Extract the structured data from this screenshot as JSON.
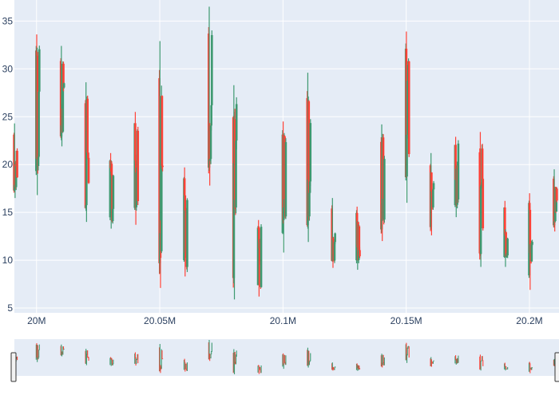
{
  "colors": {
    "increasing": "#3d9970",
    "decreasing": "#ff4136",
    "plot_bg": "#e5ecf6",
    "grid": "#ffffff",
    "tick_text": "#2a3f5f"
  },
  "chart_data": {
    "type": "candlestick",
    "title": "",
    "xlabel": "",
    "ylabel": "",
    "x_tick_labels": [
      "20M",
      "20.05M",
      "20.1M",
      "20.15M",
      "20.2M"
    ],
    "x_tick_values": [
      20000000,
      20050000,
      20100000,
      20150000,
      20200000
    ],
    "y_tick_labels": [
      "5",
      "10",
      "15",
      "20",
      "25",
      "30",
      "35"
    ],
    "y_tick_values": [
      5,
      10,
      15,
      20,
      25,
      30,
      35
    ],
    "xlim": [
      19991000,
      20212000
    ],
    "ylim": [
      4.5,
      37.2
    ],
    "grid": true,
    "rangeslider": true,
    "clusters": [
      {
        "x": 19991500,
        "high": 24.3,
        "low": 16.5,
        "close_up": false
      },
      {
        "x": 20000500,
        "high": 33.6,
        "low": 16.8,
        "close_up": true
      },
      {
        "x": 20010500,
        "high": 32.4,
        "low": 21.9,
        "close_up": false
      },
      {
        "x": 20020500,
        "high": 28.6,
        "low": 14.0,
        "close_up": false
      },
      {
        "x": 20030500,
        "high": 21.2,
        "low": 13.3,
        "close_up": true
      },
      {
        "x": 20040500,
        "high": 25.5,
        "low": 13.7,
        "close_up": true
      },
      {
        "x": 20050500,
        "high": 32.9,
        "low": 7.1,
        "close_up": false
      },
      {
        "x": 20060500,
        "high": 19.7,
        "low": 8.3,
        "close_up": true
      },
      {
        "x": 20070500,
        "high": 36.5,
        "low": 17.8,
        "close_up": false
      },
      {
        "x": 20080500,
        "high": 28.3,
        "low": 5.9,
        "close_up": false
      },
      {
        "x": 20090500,
        "high": 14.2,
        "low": 6.2,
        "close_up": true
      },
      {
        "x": 20100500,
        "high": 24.5,
        "low": 10.8,
        "close_up": true
      },
      {
        "x": 20110500,
        "high": 29.6,
        "low": 11.9,
        "close_up": false
      },
      {
        "x": 20120500,
        "high": 16.5,
        "low": 9.2,
        "close_up": false
      },
      {
        "x": 20130500,
        "high": 15.6,
        "low": 9.0,
        "close_up": true
      },
      {
        "x": 20140500,
        "high": 24.2,
        "low": 12.0,
        "close_up": false
      },
      {
        "x": 20150500,
        "high": 33.9,
        "low": 16.0,
        "close_up": true
      },
      {
        "x": 20160500,
        "high": 21.2,
        "low": 12.6,
        "close_up": false
      },
      {
        "x": 20170500,
        "high": 22.9,
        "low": 14.5,
        "close_up": true
      },
      {
        "x": 20180500,
        "high": 23.4,
        "low": 9.3,
        "close_up": false
      },
      {
        "x": 20190500,
        "high": 16.2,
        "low": 9.3,
        "close_up": true
      },
      {
        "x": 20200500,
        "high": 17.0,
        "low": 6.9,
        "close_up": true
      },
      {
        "x": 20210500,
        "high": 19.5,
        "low": 13.0,
        "close_up": false
      }
    ]
  }
}
